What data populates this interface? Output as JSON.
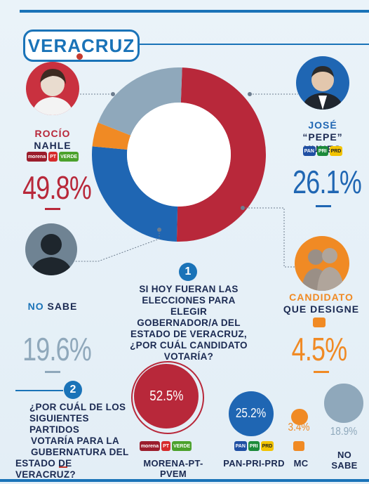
{
  "header": {
    "state": "VERACRUZ"
  },
  "colors": {
    "morena": "#b8283a",
    "pan": "#1f66b3",
    "mc": "#f08a24",
    "nosabe": "#8fa8bb",
    "accent": "#1a73b8"
  },
  "question1": {
    "number": "1",
    "text": [
      "SI HOY FUERAN LAS",
      "ELECCIONES PARA ELEGIR",
      "GOBERNADOR/A DEL",
      "ESTADO DE VERACRUZ,",
      "¿POR CUÁL CANDIDATO",
      "VOTARÍA?"
    ]
  },
  "candidates": {
    "nahle": {
      "first": "ROCÍO",
      "last": "NAHLE",
      "pct": "49.8%",
      "icon": "person-photo"
    },
    "yunes": {
      "first": "JOSÉ",
      "last": "“PEPE” YUNES",
      "pct": "26.1%",
      "icon": "person-photo"
    },
    "nosabe": {
      "label_a": "NO",
      "label_b": "SABE",
      "pct": "19.6%",
      "icon": "silhouette-icon"
    },
    "mc": {
      "first": "CANDIDATO",
      "last": "QUE DESIGNE",
      "pct": "4.5%",
      "icon": "silhouette-pair-icon"
    }
  },
  "question2": {
    "number": "2",
    "text": [
      "¿POR CUÁL DE LOS",
      "SIGUIENTES PARTIDOS",
      "VOTARÍA PARA LA",
      "GUBERNATURA DEL",
      "ESTADO DE VERACRUZ?"
    ]
  },
  "parties": {
    "morena": {
      "label": "MORENA-PT-PVEM",
      "pct": "52.5%"
    },
    "pan": {
      "label": "PAN-PRI-PRD",
      "pct": "25.2%"
    },
    "mc": {
      "label": "MC",
      "pct": "3.4%"
    },
    "nosabe": {
      "label_a": "NO",
      "label_b": "SABE",
      "pct": "18.9%"
    }
  },
  "logos": {
    "morena": "morena",
    "pt": "PT",
    "pvem": "VERDE",
    "pan": "PAN",
    "pri": "PRI",
    "prd": "PRD"
  },
  "chart_data": [
    {
      "type": "pie",
      "title": "SI HOY FUERAN LAS ELECCIONES PARA ELEGIR GOBERNADOR/A DEL ESTADO DE VERACRUZ, ¿POR CUÁL CANDIDATO VOTARÍA?",
      "categories": [
        "Rocío Nahle",
        "José “Pepe” Yunes",
        "Candidato que designe",
        "No sabe"
      ],
      "values": [
        49.8,
        26.1,
        4.5,
        19.6
      ],
      "colors": [
        "#b8283a",
        "#1f66b3",
        "#f08a24",
        "#8fa8bb"
      ],
      "style": "donut"
    },
    {
      "type": "bubble",
      "title": "¿POR CUÁL DE LOS SIGUIENTES PARTIDOS VOTARÍA PARA LA GUBERNATURA DEL ESTADO DE VERACRUZ?",
      "categories": [
        "MORENA-PT-PVEM",
        "PAN-PRI-PRD",
        "MC",
        "NO SABE"
      ],
      "values": [
        52.5,
        25.2,
        3.4,
        18.9
      ],
      "colors": [
        "#b8283a",
        "#1f66b3",
        "#f08a24",
        "#8fa8bb"
      ]
    }
  ]
}
